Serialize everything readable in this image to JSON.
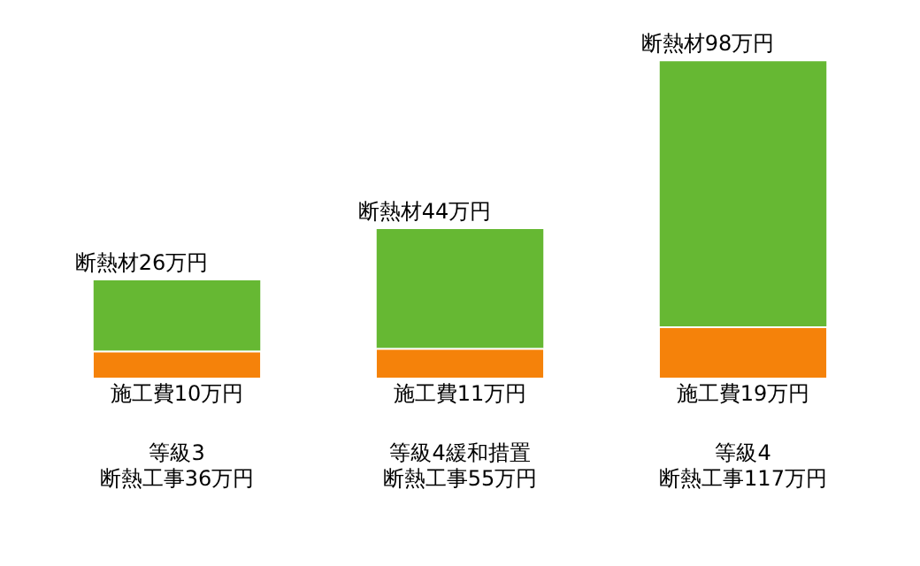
{
  "chart_data": {
    "type": "bar",
    "stacked": true,
    "legend": false,
    "grid": false,
    "categories": [
      "等級3",
      "等級4緩和措置",
      "等級4"
    ],
    "annotations": [
      "断熱工事36万円",
      "断熱工事55万円",
      "断熱工事117万円"
    ],
    "series": [
      {
        "color": "#f5820a",
        "values": [
          10,
          11,
          19
        ],
        "value_labels": [
          "施工費10万円",
          "施工費11万円",
          "施工費19万円"
        ]
      },
      {
        "color": "#66b833",
        "values": [
          26,
          44,
          98
        ],
        "value_labels": [
          "断熱材26万円",
          "断熱材44万円",
          "断熱材98万円"
        ]
      }
    ]
  }
}
